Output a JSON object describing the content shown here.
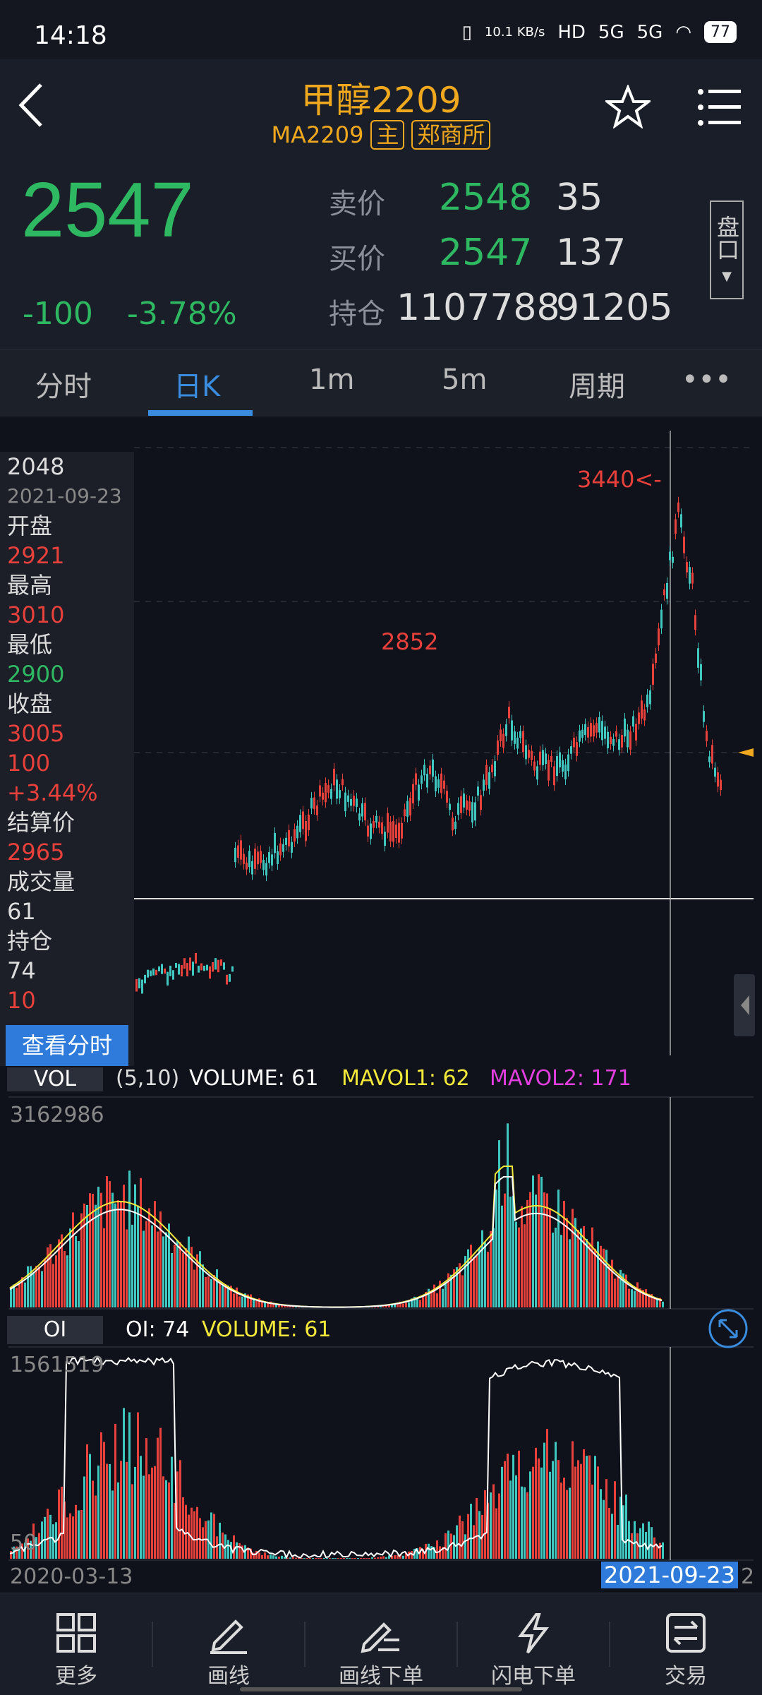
{
  "status": {
    "time": "14:18",
    "net_speed": "10.1 KB/s",
    "hd": "HD",
    "sig1": "5G",
    "sig2": "5G",
    "battery": "77"
  },
  "header": {
    "title": "甲醇2209",
    "code": "MA2209",
    "tag_main": "主",
    "tag_exchange": "郑商所"
  },
  "quote": {
    "last": "2547",
    "change": "-100",
    "change_pct": "-3.78%",
    "ask_label": "卖价",
    "ask_price": "2548",
    "ask_vol": "35",
    "bid_label": "买价",
    "bid_price": "2547",
    "bid_vol": "137",
    "oi_label": "持仓",
    "oi": "1107788",
    "oi_chg": "91205",
    "pankou": "盘口"
  },
  "tabs": [
    "分时",
    "日K",
    "1m",
    "5m",
    "周期",
    "•••"
  ],
  "info_panel": {
    "value": "2048",
    "date": "2021-09-23",
    "open_label": "开盘",
    "open": "2921",
    "high_label": "最高",
    "high": "3010",
    "low_label": "最低",
    "low": "2900",
    "close_label": "收盘",
    "close": "3005",
    "chg": "100",
    "chg_pct": "+3.44%",
    "settle_label": "结算价",
    "settle": "2965",
    "vol_label": "成交量",
    "vol": "61",
    "oi_label": "持仓",
    "oi": "74",
    "oi_chg": "10",
    "button": "查看分时"
  },
  "chart_labels": {
    "high_marker": "3440<-",
    "mid_price": "2852"
  },
  "vol_indicator": {
    "tab": "VOL",
    "params": "(5,10)",
    "volume": "VOLUME: 61",
    "mavol1": "MAVOL1: 62",
    "mavol2": "MAVOL2: 171",
    "max": "3162986"
  },
  "oi_indicator": {
    "tab": "OI",
    "oi": "OI: 74",
    "volume": "VOLUME: 61",
    "max": "1561519",
    "min": "50"
  },
  "dates": {
    "start": "2020-03-13",
    "cursor": "2021-09-23",
    "end_fragment": "2"
  },
  "bottom_nav": [
    "更多",
    "画线",
    "画线下单",
    "闪电下单",
    "交易"
  ],
  "colors": {
    "up": "#e8403b",
    "down": "#2fb862",
    "accent": "#3a8dde",
    "title": "#f0a81e",
    "mavol1": "#f4e93b",
    "mavol2": "#e23ee0"
  }
}
